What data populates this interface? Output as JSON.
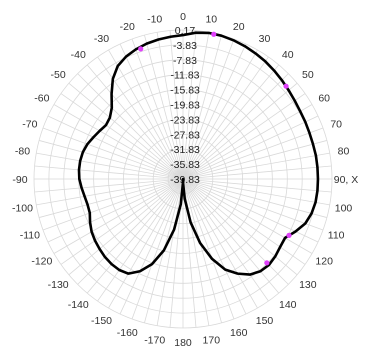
{
  "chart_data": {
    "type": "polar-line",
    "title": "",
    "angle_unit": "degrees",
    "angle_zero": "top",
    "angle_direction": "clockwise",
    "angle_ticks": [
      0,
      10,
      20,
      30,
      40,
      50,
      60,
      70,
      80,
      90,
      100,
      110,
      120,
      130,
      140,
      150,
      160,
      170,
      180,
      -170,
      -160,
      -150,
      -140,
      -130,
      -120,
      -110,
      -100,
      -90,
      -80,
      -70,
      -60,
      -50,
      -40,
      -30,
      -20,
      -10
    ],
    "angle_tick_labels": [
      "0",
      "10",
      "20",
      "30",
      "40",
      "50",
      "60",
      "70",
      "80",
      "90, X",
      "100",
      "110",
      "120",
      "130",
      "140",
      "150",
      "160",
      "170",
      "180",
      "-170",
      "-160",
      "-150",
      "-140",
      "-130",
      "-120",
      "-110",
      "-100",
      "-90",
      "-80",
      "-70",
      "-60",
      "-50",
      "-40",
      "-30",
      "-20",
      "-10"
    ],
    "radial_range": [
      -39.83,
      0.17
    ],
    "radial_ticks": [
      0.17,
      -3.83,
      -7.83,
      -11.83,
      -15.83,
      -19.83,
      -23.83,
      -27.83,
      -31.83,
      -35.83,
      -39.83
    ],
    "radial_tick_labels": [
      "0.17",
      "-3.83",
      "-7.83",
      "-11.83",
      "-15.83",
      "-19.83",
      "-23.83",
      "-27.83",
      "-31.83",
      "-35.83",
      "-39.83"
    ],
    "grid": true,
    "legend": "none",
    "line_color": "#000000",
    "marker_color": "#e040fb",
    "series": [
      {
        "points": [
          [
            0,
            -1.2
          ],
          [
            5,
            -0.4
          ],
          [
            10,
            0
          ],
          [
            15,
            0
          ],
          [
            20,
            -0.2
          ],
          [
            25,
            -0.5
          ],
          [
            30,
            -0.9
          ],
          [
            35,
            -1.3
          ],
          [
            40,
            -1.8
          ],
          [
            45,
            -2.3
          ],
          [
            50,
            -2.8
          ],
          [
            55,
            -3.2
          ],
          [
            60,
            -3.5
          ],
          [
            65,
            -3.6
          ],
          [
            70,
            -3.7
          ],
          [
            75,
            -3.7
          ],
          [
            80,
            -3.6
          ],
          [
            85,
            -3.6
          ],
          [
            90,
            -3.6
          ],
          [
            95,
            -3.6
          ],
          [
            100,
            -3.7
          ],
          [
            105,
            -4.1
          ],
          [
            110,
            -4.9
          ],
          [
            115,
            -6.5
          ],
          [
            120,
            -8.2
          ],
          [
            125,
            -8.0
          ],
          [
            130,
            -7.5
          ],
          [
            135,
            -7.2
          ],
          [
            140,
            -7.5
          ],
          [
            145,
            -8.5
          ],
          [
            150,
            -10.5
          ],
          [
            155,
            -13.0
          ],
          [
            160,
            -17.0
          ],
          [
            165,
            -22.0
          ],
          [
            170,
            -28.0
          ],
          [
            175,
            -34.5
          ],
          [
            178,
            -38.5
          ],
          [
            180,
            -39.83
          ],
          [
            -178,
            -38.5
          ],
          [
            -175,
            -33.0
          ],
          [
            -170,
            -26.0
          ],
          [
            -165,
            -20.0
          ],
          [
            -160,
            -15.5
          ],
          [
            -155,
            -12.5
          ],
          [
            -150,
            -10.5
          ],
          [
            -145,
            -10.0
          ],
          [
            -140,
            -10.0
          ],
          [
            -135,
            -10.2
          ],
          [
            -130,
            -10.6
          ],
          [
            -125,
            -11.0
          ],
          [
            -120,
            -11.5
          ],
          [
            -115,
            -12.3
          ],
          [
            -110,
            -13.2
          ],
          [
            -105,
            -13.3
          ],
          [
            -100,
            -13.0
          ],
          [
            -95,
            -12.5
          ],
          [
            -90,
            -12.0
          ],
          [
            -85,
            -11.8
          ],
          [
            -80,
            -11.8
          ],
          [
            -75,
            -12.0
          ],
          [
            -70,
            -12.5
          ],
          [
            -65,
            -13.3
          ],
          [
            -60,
            -14.0
          ],
          [
            -55,
            -14.6
          ],
          [
            -50,
            -14.2
          ],
          [
            -45,
            -12.8
          ],
          [
            -40,
            -10.0
          ],
          [
            -35,
            -7.0
          ],
          [
            -30,
            -4.8
          ],
          [
            -25,
            -3.6
          ],
          [
            -20,
            -2.8
          ],
          [
            -15,
            -2.2
          ],
          [
            -10,
            -1.8
          ],
          [
            -5,
            -1.5
          ],
          [
            0,
            -1.2
          ]
        ],
        "markers": [
          [
            -18,
            -3.1
          ],
          [
            12,
            -0.1
          ],
          [
            48,
            -2.6
          ],
          [
            118,
            -7.6
          ],
          [
            135,
            -8.0
          ]
        ]
      }
    ]
  }
}
